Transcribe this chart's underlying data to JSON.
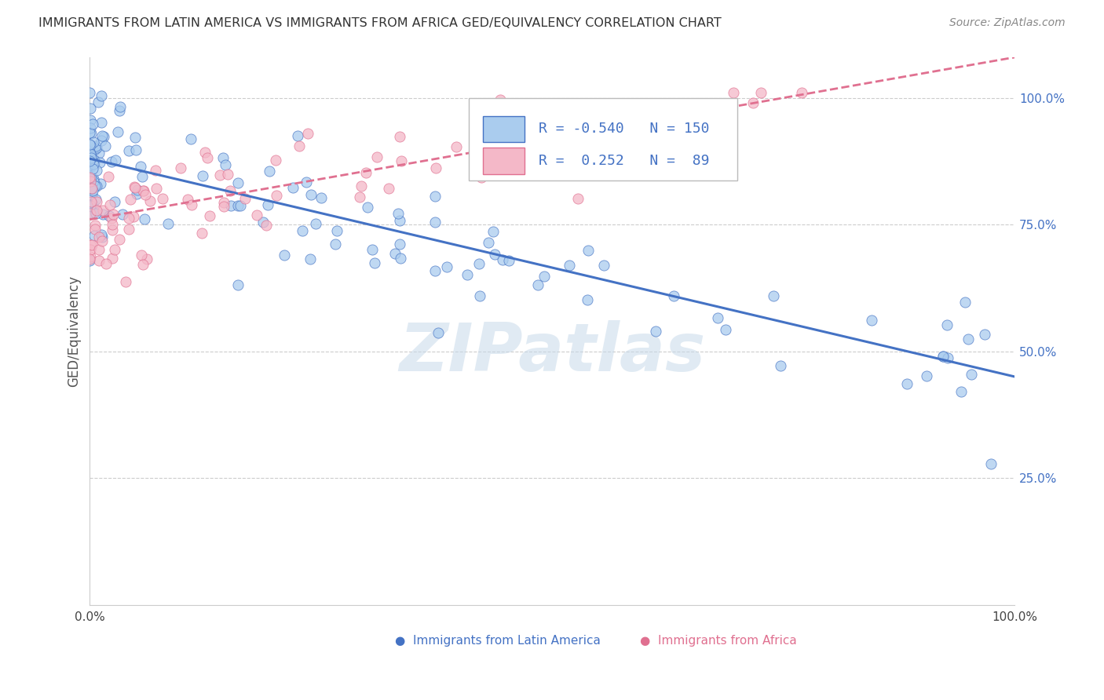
{
  "title": "IMMIGRANTS FROM LATIN AMERICA VS IMMIGRANTS FROM AFRICA GED/EQUIVALENCY CORRELATION CHART",
  "source": "Source: ZipAtlas.com",
  "ylabel": "GED/Equivalency",
  "legend_entries": [
    {
      "label": "Immigrants from Latin America",
      "color": "#aaccee",
      "edge": "#4472c4",
      "R": -0.54,
      "N": 150
    },
    {
      "label": "Immigrants from Africa",
      "color": "#f4b8c8",
      "edge": "#e07090",
      "R": 0.252,
      "N": 89
    }
  ],
  "blue_line_color": "#4472c4",
  "pink_line_color": "#e07090",
  "blue_dot_color": "#aaccee",
  "pink_dot_color": "#f4b8c8",
  "background_color": "#ffffff",
  "grid_color": "#cccccc",
  "title_color": "#333333",
  "source_color": "#888888",
  "watermark": "ZIPatlas",
  "watermark_color": "#c8daea",
  "ytick_values": [
    0.25,
    0.5,
    0.75,
    1.0
  ],
  "ytick_labels": [
    "25.0%",
    "50.0%",
    "75.0%",
    "100.0%"
  ],
  "blue_trend": [
    0.88,
    0.45
  ],
  "pink_trend": [
    0.76,
    1.08
  ]
}
